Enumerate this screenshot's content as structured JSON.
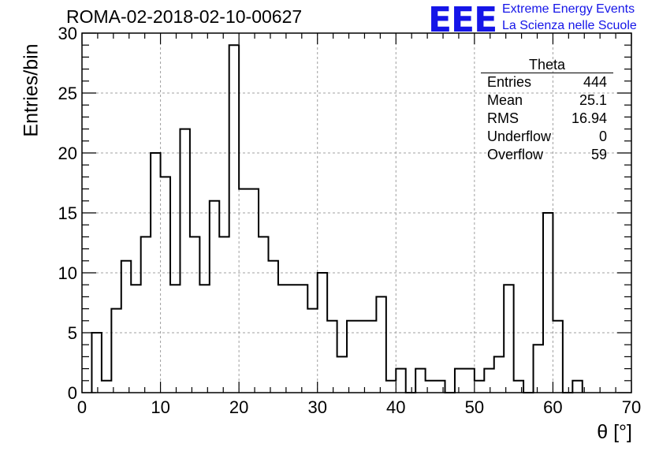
{
  "title": "ROMA-02-2018-02-10-00627",
  "logo": {
    "mark": "EEE",
    "line1": "Extreme Energy Events",
    "line2": "La Scienza nelle Scuole"
  },
  "stats": {
    "name": "Theta",
    "rows": [
      {
        "label": "Entries",
        "value": "444"
      },
      {
        "label": "Mean",
        "value": "25.1"
      },
      {
        "label": "RMS",
        "value": "16.94"
      },
      {
        "label": "Underflow",
        "value": "0"
      },
      {
        "label": "Overflow",
        "value": "59"
      }
    ]
  },
  "chart_data": {
    "type": "histogram",
    "xlabel": "θ [°]",
    "ylabel": "Entries/bin",
    "xlim": [
      0,
      70
    ],
    "ylim": [
      0,
      30
    ],
    "xticks": [
      0,
      10,
      20,
      30,
      40,
      50,
      60,
      70
    ],
    "yticks": [
      0,
      5,
      10,
      15,
      20,
      25,
      30
    ],
    "grid": true,
    "bin_width": 1.25,
    "bin_edges_start": 1.25,
    "values": [
      5,
      1,
      7,
      11,
      9,
      13,
      20,
      18,
      9,
      22,
      13,
      9,
      16,
      13,
      29,
      17,
      17,
      13,
      11,
      9,
      9,
      9,
      7,
      10,
      6,
      3,
      6,
      6,
      6,
      8,
      1,
      2,
      0,
      2,
      1,
      1,
      0,
      2,
      2,
      1,
      2,
      3,
      9,
      1,
      0,
      4,
      15,
      6,
      0,
      1
    ]
  }
}
